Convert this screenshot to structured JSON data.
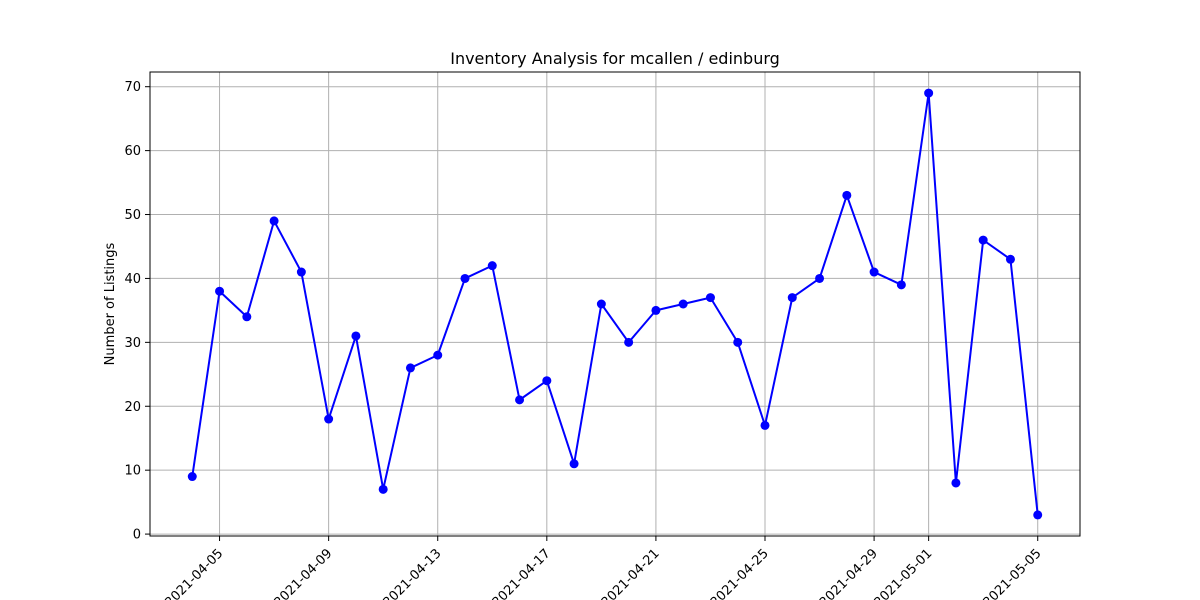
{
  "chart_data": {
    "type": "line",
    "title": "Inventory Analysis for mcallen / edinburg",
    "xlabel": "",
    "ylabel": "Number of Listings",
    "x": [
      "2021-04-04",
      "2021-04-05",
      "2021-04-06",
      "2021-04-07",
      "2021-04-08",
      "2021-04-09",
      "2021-04-10",
      "2021-04-11",
      "2021-04-12",
      "2021-04-13",
      "2021-04-14",
      "2021-04-15",
      "2021-04-16",
      "2021-04-17",
      "2021-04-18",
      "2021-04-19",
      "2021-04-20",
      "2021-04-21",
      "2021-04-22",
      "2021-04-23",
      "2021-04-24",
      "2021-04-25",
      "2021-04-26",
      "2021-04-27",
      "2021-04-28",
      "2021-04-29",
      "2021-04-30",
      "2021-05-01",
      "2021-05-02",
      "2021-05-03",
      "2021-05-04",
      "2021-05-05"
    ],
    "series": [
      {
        "name": "",
        "values": [
          9,
          38,
          34,
          49,
          41,
          18,
          31,
          7,
          26,
          28,
          40,
          42,
          21,
          24,
          11,
          36,
          30,
          35,
          36,
          37,
          30,
          17,
          37,
          40,
          53,
          41,
          39,
          69,
          8,
          46,
          43,
          3
        ]
      }
    ],
    "xticks": [
      "2021-04-05",
      "2021-04-09",
      "2021-04-13",
      "2021-04-17",
      "2021-04-21",
      "2021-04-25",
      "2021-04-29",
      "2021-05-01",
      "2021-05-05"
    ],
    "xlim": [
      "2021-04-02.45",
      "2021-05-06.55"
    ],
    "yticks": [
      0,
      10,
      20,
      30,
      40,
      50,
      60,
      70
    ],
    "ylim": [
      -0.3,
      72.3
    ],
    "grid": true,
    "line_color": "#0000ff",
    "marker_color": "#0000ff",
    "grid_color": "#b0b0b0"
  }
}
